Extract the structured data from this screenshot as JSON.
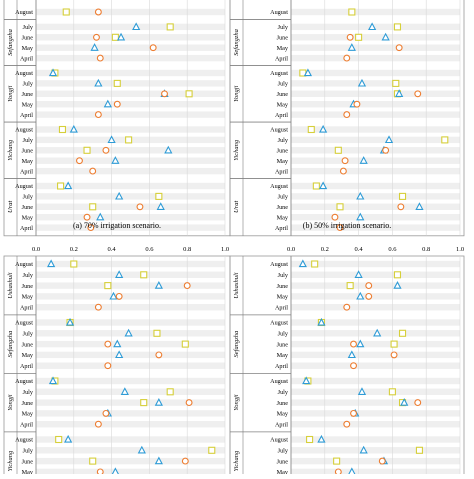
{
  "chart_data": [
    {
      "type": "scatter",
      "caption": "(a) 70% irrigation scenario.",
      "xlim": [
        0,
        1
      ],
      "xticks": [
        0,
        0.2,
        0.4,
        0.6,
        0.8,
        1.0
      ],
      "tick_labels": [],
      "grid": true,
      "groups": [
        {
          "name": "",
          "months": [
            "August"
          ],
          "values": {
            "circle": [
              0.33
            ],
            "triangle": [
              null
            ],
            "square": [
              0.16
            ]
          }
        },
        {
          "name": "Sefangzha",
          "months": [
            "July",
            "June",
            "May",
            "April"
          ],
          "values": {
            "circle": [
              null,
              0.32,
              0.62,
              0.34
            ],
            "triangle": [
              0.53,
              0.45,
              0.31,
              null
            ],
            "square": [
              0.71,
              0.42,
              null,
              null
            ]
          }
        },
        {
          "name": "Yongji",
          "months": [
            "August",
            "July",
            "June",
            "May",
            "April"
          ],
          "values": {
            "circle": [
              null,
              null,
              0.68,
              0.43,
              0.33
            ],
            "triangle": [
              0.09,
              0.33,
              0.68,
              0.38,
              null
            ],
            "square": [
              0.1,
              0.43,
              0.81,
              null,
              null
            ]
          }
        },
        {
          "name": "Yichang",
          "months": [
            "August",
            "July",
            "June",
            "May",
            "April"
          ],
          "values": {
            "circle": [
              null,
              null,
              0.37,
              0.23,
              0.3
            ],
            "triangle": [
              0.2,
              0.4,
              0.7,
              0.42,
              null
            ],
            "square": [
              0.14,
              0.49,
              0.27,
              null,
              null
            ]
          }
        },
        {
          "name": "Urat",
          "months": [
            "August",
            "July",
            "June",
            "May",
            "April"
          ],
          "values": {
            "circle": [
              null,
              null,
              0.55,
              0.27,
              0.29
            ],
            "triangle": [
              0.17,
              0.44,
              0.66,
              0.34,
              null
            ],
            "square": [
              0.13,
              0.65,
              0.3,
              null,
              null
            ]
          }
        }
      ]
    },
    {
      "type": "scatter",
      "caption": "(b) 50% irrigation scenario.",
      "xlim": [
        0,
        1
      ],
      "xticks": [
        0,
        0.2,
        0.4,
        0.6,
        0.8,
        1.0
      ],
      "tick_labels": [],
      "grid": true,
      "groups": [
        {
          "name": "",
          "months": [
            "August"
          ],
          "values": {
            "circle": [
              null
            ],
            "triangle": [
              null
            ],
            "square": [
              0.36
            ]
          }
        },
        {
          "name": "Sefangzha",
          "months": [
            "July",
            "June",
            "May",
            "April"
          ],
          "values": {
            "circle": [
              null,
              0.35,
              0.64,
              0.33
            ],
            "triangle": [
              0.48,
              0.56,
              0.36,
              null
            ],
            "square": [
              0.63,
              0.4,
              null,
              null
            ]
          }
        },
        {
          "name": "Yongji",
          "months": [
            "August",
            "July",
            "June",
            "May",
            "April"
          ],
          "values": {
            "circle": [
              null,
              null,
              0.75,
              0.39,
              0.33
            ],
            "triangle": [
              0.1,
              0.42,
              0.64,
              0.37,
              null
            ],
            "square": [
              0.07,
              0.62,
              0.63,
              null,
              null
            ]
          }
        },
        {
          "name": "Yichang",
          "months": [
            "August",
            "July",
            "June",
            "May",
            "April"
          ],
          "values": {
            "circle": [
              null,
              null,
              0.56,
              0.32,
              0.31
            ],
            "triangle": [
              0.19,
              0.58,
              0.55,
              0.43,
              null
            ],
            "square": [
              0.12,
              0.91,
              0.28,
              null,
              null
            ]
          }
        },
        {
          "name": "Urat",
          "months": [
            "August",
            "July",
            "June",
            "May",
            "April"
          ],
          "values": {
            "circle": [
              null,
              null,
              0.65,
              0.26,
              0.29
            ],
            "triangle": [
              0.19,
              0.41,
              0.76,
              0.41,
              null
            ],
            "square": [
              0.15,
              0.66,
              0.29,
              null,
              null
            ]
          }
        }
      ]
    },
    {
      "type": "scatter",
      "caption": "",
      "xlim": [
        0,
        1
      ],
      "xticks": [
        0,
        0.2,
        0.4,
        0.6,
        0.8,
        1.0
      ],
      "tick_labels": [
        "0.0",
        "0.2",
        "0.4",
        "0.6",
        "0.8",
        "1.0"
      ],
      "grid": true,
      "groups": [
        {
          "name": "Ushashuli",
          "months": [
            "August",
            "July",
            "June",
            "May",
            "April"
          ],
          "values": {
            "circle": [
              null,
              null,
              0.8,
              0.44,
              0.33
            ],
            "triangle": [
              0.08,
              0.44,
              0.65,
              0.41,
              null
            ],
            "square": [
              0.2,
              0.57,
              0.38,
              null,
              null
            ]
          }
        },
        {
          "name": "Sefangzha",
          "months": [
            "August",
            "July",
            "June",
            "May",
            "April"
          ],
          "values": {
            "circle": [
              null,
              null,
              0.38,
              0.65,
              0.38
            ],
            "triangle": [
              0.18,
              0.49,
              0.43,
              0.44,
              null
            ],
            "square": [
              0.18,
              0.64,
              0.79,
              null,
              null
            ]
          }
        },
        {
          "name": "Yongji",
          "months": [
            "August",
            "July",
            "June",
            "May",
            "April"
          ],
          "values": {
            "circle": [
              null,
              null,
              0.81,
              0.37,
              0.33
            ],
            "triangle": [
              0.09,
              0.47,
              0.65,
              0.38,
              null
            ],
            "square": [
              0.1,
              0.71,
              0.57,
              null,
              null
            ]
          }
        },
        {
          "name": "Yichang",
          "months": [
            "August",
            "July",
            "June",
            "May",
            "April"
          ],
          "values": {
            "circle": [
              null,
              null,
              0.79,
              0.34,
              0.31
            ],
            "triangle": [
              0.17,
              0.56,
              0.65,
              0.42,
              null
            ],
            "square": [
              0.12,
              0.93,
              0.3,
              null,
              null
            ]
          }
        }
      ]
    },
    {
      "type": "scatter",
      "caption": "",
      "xlim": [
        0,
        1
      ],
      "xticks": [
        0,
        0.2,
        0.4,
        0.6,
        0.8,
        1.0
      ],
      "tick_labels": [
        "0.0",
        "0.2",
        "0.4",
        "0.6",
        "0.8",
        "1.0"
      ],
      "grid": true,
      "groups": [
        {
          "name": "Ushashuli",
          "months": [
            "August",
            "July",
            "June",
            "May",
            "April"
          ],
          "values": {
            "circle": [
              null,
              null,
              0.46,
              0.46,
              0.33
            ],
            "triangle": [
              0.07,
              0.4,
              0.63,
              0.41,
              null
            ],
            "square": [
              0.14,
              0.63,
              0.35,
              null,
              null
            ]
          }
        },
        {
          "name": "Sefangzha",
          "months": [
            "August",
            "July",
            "June",
            "May",
            "April"
          ],
          "values": {
            "circle": [
              null,
              null,
              0.37,
              0.61,
              0.37
            ],
            "triangle": [
              0.18,
              0.51,
              0.41,
              0.36,
              null
            ],
            "square": [
              0.18,
              0.66,
              0.61,
              null,
              null
            ]
          }
        },
        {
          "name": "Yongji",
          "months": [
            "August",
            "July",
            "June",
            "May",
            "April"
          ],
          "values": {
            "circle": [
              null,
              null,
              0.75,
              0.37,
              0.33
            ],
            "triangle": [
              0.09,
              0.42,
              0.67,
              0.38,
              null
            ],
            "square": [
              0.1,
              0.6,
              0.66,
              null,
              null
            ]
          }
        },
        {
          "name": "Yichang",
          "months": [
            "August",
            "July",
            "June",
            "May",
            "April"
          ],
          "values": {
            "circle": [
              null,
              null,
              0.54,
              0.28,
              0.3
            ],
            "triangle": [
              0.18,
              0.43,
              0.55,
              0.36,
              null
            ],
            "square": [
              0.11,
              0.76,
              0.27,
              null,
              null
            ]
          }
        }
      ]
    }
  ],
  "colors": {
    "circle": "#ED7D31",
    "triangle": "#2E9BD6",
    "square": "#D6CF3A",
    "grid": "#d9d9d9",
    "band": "#efefef",
    "axis": "#808080",
    "text": "#000000"
  },
  "markers": {
    "circle": "open-circle",
    "triangle": "open-triangle",
    "square": "open-square"
  }
}
